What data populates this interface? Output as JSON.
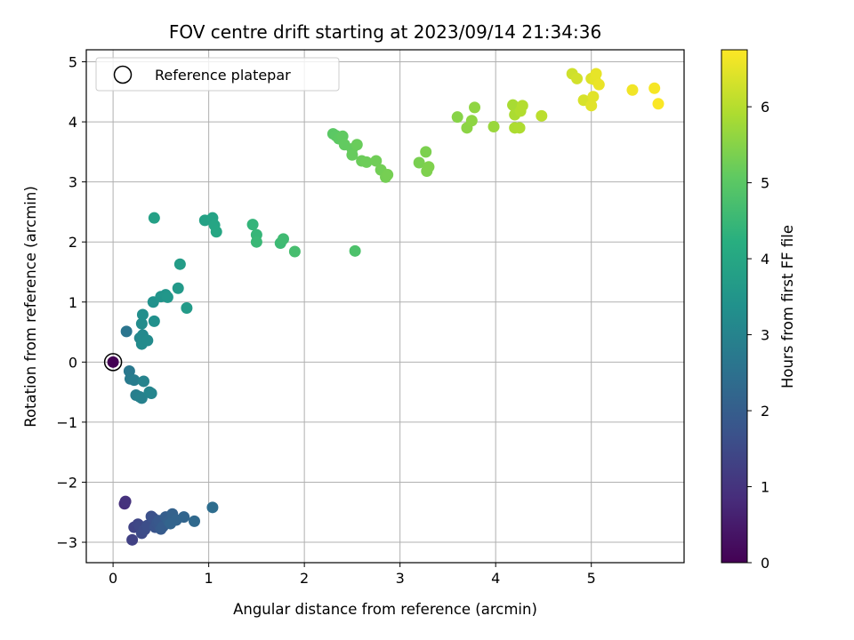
{
  "chart_data": {
    "type": "scatter",
    "title": "FOV centre drift starting at 2023/09/14 21:34:36",
    "xlabel": "Angular distance from reference (arcmin)",
    "ylabel": "Rotation from reference (arcmin)",
    "xlim": [
      -0.28,
      5.97
    ],
    "ylim": [
      -3.34,
      5.2
    ],
    "xticks": [
      "0",
      "1",
      "2",
      "3",
      "4",
      "5"
    ],
    "yticks": [
      "−3",
      "−2",
      "−1",
      "0",
      "1",
      "2",
      "3",
      "4",
      "5"
    ],
    "grid": true,
    "legend": {
      "placement": "top-left",
      "entries": [
        "Reference platepar"
      ]
    },
    "colorbar": {
      "label": "Hours from first FF file",
      "colormap": "viridis",
      "range": [
        0,
        6.75
      ],
      "ticks": [
        "0",
        "1",
        "2",
        "3",
        "4",
        "5",
        "6"
      ]
    },
    "reference_point": {
      "x": 0,
      "y": 0
    },
    "points": [
      [
        0.0,
        0.0,
        0.0
      ],
      [
        0.12,
        -2.36,
        0.9
      ],
      [
        0.13,
        -2.32,
        0.95
      ],
      [
        0.2,
        -2.96,
        1.3
      ],
      [
        0.22,
        -2.75,
        1.35
      ],
      [
        0.26,
        -2.7,
        1.4
      ],
      [
        0.28,
        -2.73,
        1.45
      ],
      [
        0.3,
        -2.85,
        1.5
      ],
      [
        0.33,
        -2.79,
        1.55
      ],
      [
        0.36,
        -2.72,
        1.6
      ],
      [
        0.4,
        -2.57,
        1.65
      ],
      [
        0.42,
        -2.6,
        1.7
      ],
      [
        0.44,
        -2.75,
        1.75
      ],
      [
        0.46,
        -2.68,
        1.8
      ],
      [
        0.48,
        -2.64,
        1.85
      ],
      [
        0.5,
        -2.78,
        1.9
      ],
      [
        0.52,
        -2.74,
        1.95
      ],
      [
        0.55,
        -2.58,
        2.0
      ],
      [
        0.58,
        -2.65,
        2.05
      ],
      [
        0.62,
        -2.53,
        2.1
      ],
      [
        0.66,
        -2.63,
        2.15
      ],
      [
        0.6,
        -2.69,
        2.15
      ],
      [
        0.74,
        -2.58,
        2.2
      ],
      [
        0.85,
        -2.65,
        2.3
      ],
      [
        1.04,
        -2.42,
        2.4
      ],
      [
        0.14,
        0.51,
        2.6
      ],
      [
        0.17,
        -0.15,
        2.7
      ],
      [
        0.18,
        -0.28,
        2.75
      ],
      [
        0.22,
        -0.3,
        2.8
      ],
      [
        0.24,
        -0.55,
        2.85
      ],
      [
        0.28,
        -0.58,
        2.9
      ],
      [
        0.3,
        -0.6,
        2.95
      ],
      [
        0.32,
        -0.32,
        3.0
      ],
      [
        0.38,
        -0.5,
        3.05
      ],
      [
        0.4,
        -0.52,
        3.05
      ],
      [
        0.28,
        0.4,
        3.1
      ],
      [
        0.31,
        0.45,
        3.15
      ],
      [
        0.3,
        0.3,
        3.2
      ],
      [
        0.36,
        0.36,
        3.2
      ],
      [
        0.3,
        0.64,
        3.25
      ],
      [
        0.31,
        0.79,
        3.3
      ],
      [
        0.43,
        0.68,
        3.35
      ],
      [
        0.42,
        1.0,
        3.4
      ],
      [
        0.5,
        1.09,
        3.45
      ],
      [
        0.55,
        1.12,
        3.5
      ],
      [
        0.57,
        1.08,
        3.55
      ],
      [
        0.68,
        1.23,
        3.6
      ],
      [
        0.77,
        0.9,
        3.65
      ],
      [
        0.7,
        1.63,
        3.7
      ],
      [
        0.43,
        2.4,
        3.8
      ],
      [
        0.96,
        2.36,
        3.85
      ],
      [
        1.04,
        2.4,
        3.9
      ],
      [
        1.06,
        2.28,
        3.95
      ],
      [
        1.08,
        2.17,
        4.0
      ],
      [
        1.46,
        2.29,
        4.4
      ],
      [
        1.5,
        2.12,
        4.45
      ],
      [
        1.5,
        2.0,
        4.5
      ],
      [
        1.75,
        1.98,
        4.55
      ],
      [
        1.78,
        2.05,
        4.6
      ],
      [
        1.9,
        1.84,
        4.7
      ],
      [
        2.53,
        1.85,
        4.8
      ],
      [
        2.3,
        3.8,
        5.0
      ],
      [
        2.33,
        3.77,
        5.02
      ],
      [
        2.36,
        3.72,
        5.05
      ],
      [
        2.4,
        3.76,
        5.08
      ],
      [
        2.42,
        3.62,
        5.1
      ],
      [
        2.5,
        3.55,
        5.12
      ],
      [
        2.5,
        3.45,
        5.15
      ],
      [
        2.55,
        3.62,
        5.18
      ],
      [
        2.6,
        3.35,
        5.2
      ],
      [
        2.65,
        3.33,
        5.22
      ],
      [
        2.75,
        3.35,
        5.25
      ],
      [
        2.8,
        3.2,
        5.28
      ],
      [
        2.85,
        3.08,
        5.3
      ],
      [
        2.87,
        3.12,
        5.32
      ],
      [
        3.2,
        3.32,
        5.35
      ],
      [
        3.27,
        3.5,
        5.38
      ],
      [
        3.28,
        3.18,
        5.4
      ],
      [
        3.3,
        3.25,
        5.42
      ],
      [
        3.6,
        4.08,
        5.5
      ],
      [
        3.7,
        3.9,
        5.55
      ],
      [
        3.75,
        4.02,
        5.58
      ],
      [
        3.78,
        4.24,
        5.6
      ],
      [
        3.98,
        3.92,
        5.7
      ],
      [
        4.18,
        4.28,
        5.85
      ],
      [
        4.2,
        4.12,
        5.88
      ],
      [
        4.2,
        3.9,
        5.9
      ],
      [
        4.25,
        3.9,
        5.92
      ],
      [
        4.26,
        4.18,
        5.95
      ],
      [
        4.28,
        4.27,
        5.97
      ],
      [
        4.48,
        4.1,
        6.05
      ],
      [
        4.8,
        4.8,
        6.25
      ],
      [
        4.85,
        4.72,
        6.3
      ],
      [
        4.92,
        4.36,
        6.35
      ],
      [
        5.0,
        4.72,
        6.4
      ],
      [
        5.02,
        4.42,
        6.45
      ],
      [
        5.0,
        4.27,
        6.45
      ],
      [
        5.04,
        4.7,
        6.5
      ],
      [
        5.05,
        4.8,
        6.52
      ],
      [
        5.08,
        4.62,
        6.55
      ],
      [
        5.43,
        4.53,
        6.62
      ],
      [
        5.66,
        4.56,
        6.68
      ],
      [
        5.7,
        4.3,
        6.72
      ]
    ]
  }
}
